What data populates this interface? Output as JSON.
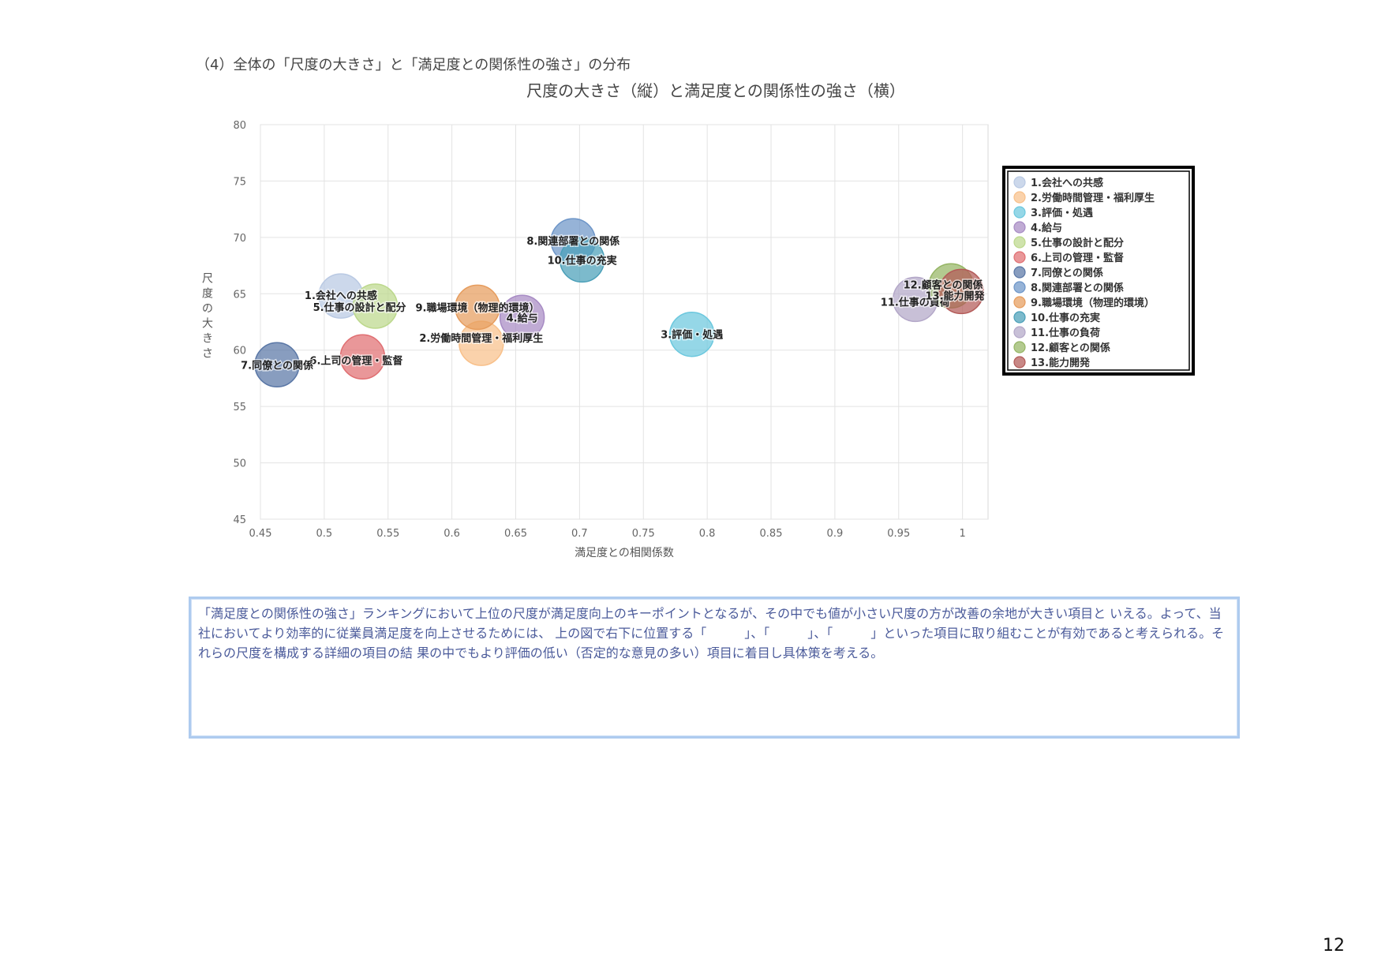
{
  "heading": "（4）全体の「尺度の大きさ」と「満足度との関係性の強さ」の分布",
  "chart_data": {
    "type": "scatter",
    "title": "尺度の大きさ（縦）と満足度との関係性の強さ（横）",
    "xlabel": "満足度との相関係数",
    "ylabel": "尺度の大きさ",
    "xlim": [
      0.45,
      1.02
    ],
    "ylim": [
      45,
      80
    ],
    "xticks": [
      "0.45",
      "0.5",
      "0.55",
      "0.6",
      "0.65",
      "0.7",
      "0.75",
      "0.8",
      "0.85",
      "0.9",
      "0.95",
      "1"
    ],
    "yticks": [
      "80",
      "75",
      "70",
      "65",
      "60",
      "55",
      "50",
      "45"
    ],
    "grid": true,
    "legend_position": "right",
    "series": [
      {
        "name": "1.会社への共感",
        "x": 0.513,
        "y": 64.8,
        "color": "#b9c9e3"
      },
      {
        "name": "2.労働時間管理・福利厚生",
        "x": 0.623,
        "y": 60.6,
        "color": "#f8c08a"
      },
      {
        "name": "3.評価・処遇",
        "x": 0.788,
        "y": 61.4,
        "color": "#6cc8de"
      },
      {
        "name": "4.給与",
        "x": 0.655,
        "y": 62.9,
        "color": "#a78bc4"
      },
      {
        "name": "5.仕事の設計と配分",
        "x": 0.54,
        "y": 63.9,
        "color": "#bcd88c"
      },
      {
        "name": "6.上司の管理・監督",
        "x": 0.53,
        "y": 59.4,
        "color": "#e06f72"
      },
      {
        "name": "7.同僚との関係",
        "x": 0.463,
        "y": 58.7,
        "color": "#5a77a6"
      },
      {
        "name": "8.関連部署との関係",
        "x": 0.695,
        "y": 69.7,
        "color": "#6d95c8"
      },
      {
        "name": "9.職場環境（物理的環境）",
        "x": 0.62,
        "y": 63.8,
        "color": "#e69c5d"
      },
      {
        "name": "10.仕事の充実",
        "x": 0.702,
        "y": 68.0,
        "color": "#4a9fb8"
      },
      {
        "name": "11.仕事の負荷",
        "x": 0.963,
        "y": 64.5,
        "color": "#b3a7c8"
      },
      {
        "name": "12.顧客との関係",
        "x": 0.991,
        "y": 65.7,
        "color": "#95b564"
      },
      {
        "name": "13.能力開発",
        "x": 0.999,
        "y": 65.2,
        "color": "#b35a58"
      }
    ]
  },
  "comment_text": "「満足度との関係性の強さ」ランキングにおいて上位の尺度が満足度向上のキーポイントとなるが、その中でも値が小さい尺度の方が改善の余地が大きい項目と いえる。よって、当社においてより効率的に従業員満足度を向上させるためには、 上の図で右下に位置する「　　　」、「　　　」、「　　　」といった項目に取り組むことが有効であると考えられる。それらの尺度を構成する詳細の項目の結 果の中でもより評価の低い（否定的な意見の多い）項目に着目し具体策を考える。",
  "page_number": "12"
}
